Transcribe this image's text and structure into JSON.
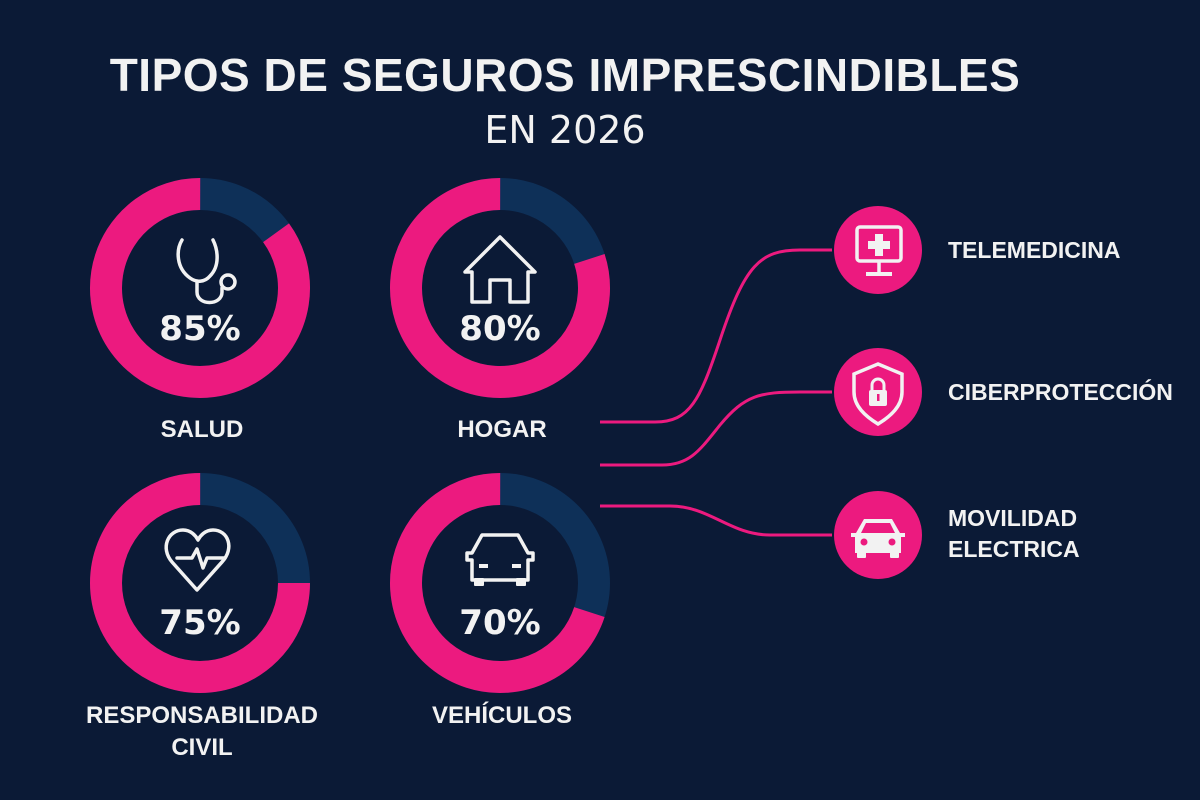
{
  "header": {
    "title": "TIPOS DE SEGUROS IMPRESCINDIBLES",
    "subtitle": "EN 2026"
  },
  "colors": {
    "background": "#0b1a36",
    "accent": "#ec1a7f",
    "remainder": "#0e3058",
    "text": "#f2f2f2"
  },
  "chart_data": {
    "type": "pie",
    "variant": "donut",
    "categories": [
      "SALUD",
      "HOGAR",
      "RESPONSABILIDAD CIVIL",
      "VEHÍCULOS"
    ],
    "values": [
      85,
      80,
      75,
      70
    ],
    "unit": "%",
    "items": [
      {
        "label": "SALUD",
        "label_lines": [
          "SALUD"
        ],
        "value": 85,
        "value_label": "85%",
        "icon": "stethoscope-icon"
      },
      {
        "label": "HOGAR",
        "label_lines": [
          "HOGAR"
        ],
        "value": 80,
        "value_label": "80%",
        "icon": "house-icon"
      },
      {
        "label": "RESPONSABILIDAD CIVIL",
        "label_lines": [
          "RESPONSABILIDAD",
          "CIVIL"
        ],
        "value": 75,
        "value_label": "75%",
        "icon": "heart-pulse-icon"
      },
      {
        "label": "VEHÍCULOS",
        "label_lines": [
          "VEHÍCULOS"
        ],
        "value": 70,
        "value_label": "70%",
        "icon": "car-icon"
      }
    ]
  },
  "trends": [
    {
      "label_lines": [
        "TELEMEDICINA"
      ],
      "icon": "monitor-medical-icon"
    },
    {
      "label_lines": [
        "CIBERPROTECCIÓN"
      ],
      "icon": "shield-lock-icon"
    },
    {
      "label_lines": [
        "MOVILIDAD",
        "ELECTRICA"
      ],
      "icon": "car-icon"
    }
  ]
}
